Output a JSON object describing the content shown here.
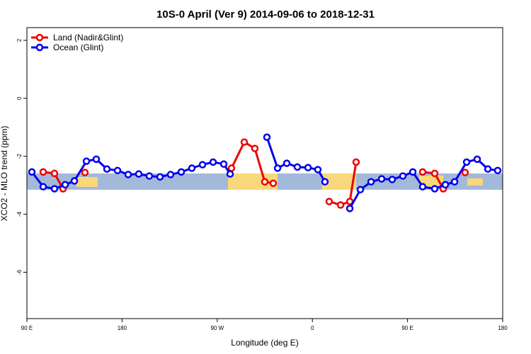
{
  "chart_data": {
    "type": "line",
    "title": "10S-0 April (Ver 9)   2014-09-06 to 2018-12-31",
    "x_label": "Longitude (deg E)",
    "y_label": "XCO2 - MLO trend (ppm)",
    "xlim": [
      90,
      540
    ],
    "ylim": [
      -7.6,
      2.44
    ],
    "xticks": [
      {
        "value": 90,
        "label": "90 E"
      },
      180,
      {
        "value": 270,
        "label": "90 W"
      },
      {
        "value": 360,
        "label": "0"
      },
      {
        "value": 450,
        "label": "90 E"
      },
      {
        "value": 540,
        "label": "180"
      }
    ],
    "yticks": [
      2,
      0,
      -2,
      -4,
      -6
    ],
    "legend": "top-left",
    "series": [
      {
        "name": "Land (Nadir&Glint)",
        "color": "#ee0000",
        "x": [
          105.4,
          116.1,
          124.2,
          null,
          144.9,
          null,
          283.5,
          295.6,
          305.6,
          315.0,
          323.0,
          null,
          375.9,
          386.7,
          395.4,
          401.4,
          null,
          464.3,
          475.7,
          483.8,
          null,
          504.5
        ],
        "values": [
          -2.54,
          -2.59,
          -3.12,
          null,
          -2.56,
          null,
          -2.41,
          -1.51,
          -1.73,
          -2.88,
          -2.93,
          null,
          -3.56,
          -3.68,
          -3.56,
          -2.2,
          null,
          -2.54,
          -2.59,
          -3.12,
          null,
          -2.56
        ]
      },
      {
        "name": "Ocean (Glint)",
        "color": "#0000ee",
        "x": [
          94.7,
          105.4,
          116.1,
          126.2,
          134.9,
          146.3,
          155.6,
          165.7,
          175.7,
          185.8,
          195.8,
          205.8,
          215.9,
          225.9,
          236.0,
          246.0,
          256.1,
          266.1,
          276.2,
          282.2,
          null,
          317.0,
          327.1,
          335.8,
          345.8,
          355.9,
          365.2,
          371.9,
          null,
          395.4,
          405.4,
          415.5,
          425.5,
          435.5,
          445.6,
          455.0,
          464.3,
          475.7,
          485.8,
          494.5,
          505.9,
          515.9,
          526.0,
          535.3
        ],
        "values": [
          -2.54,
          -3.05,
          -3.12,
          -2.98,
          -2.85,
          -2.17,
          -2.1,
          -2.44,
          -2.49,
          -2.63,
          -2.61,
          -2.68,
          -2.71,
          -2.63,
          -2.54,
          -2.41,
          -2.29,
          -2.2,
          -2.27,
          -2.61,
          null,
          -1.34,
          -2.41,
          -2.24,
          -2.37,
          -2.39,
          -2.46,
          -2.88,
          null,
          -3.8,
          -3.15,
          -2.88,
          -2.78,
          -2.8,
          -2.68,
          -2.54,
          -3.05,
          -3.12,
          -2.98,
          -2.88,
          -2.2,
          -2.1,
          -2.44,
          -2.49
        ]
      }
    ]
  }
}
